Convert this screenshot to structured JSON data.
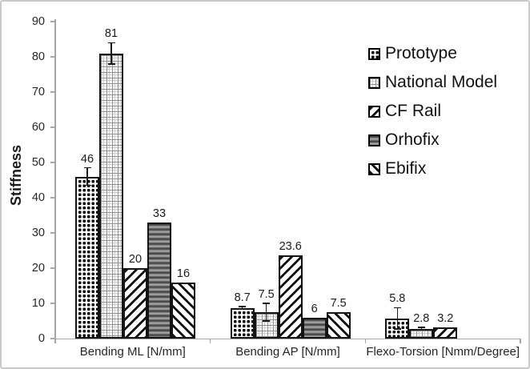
{
  "chart_data": {
    "type": "bar",
    "title": "",
    "xlabel": "",
    "ylabel": "Stiffness",
    "ylim": [
      0,
      90
    ],
    "ytick_step": 10,
    "yticks": [
      0,
      10,
      20,
      30,
      40,
      50,
      60,
      70,
      80,
      90
    ],
    "grid": false,
    "legend_position": "upper right",
    "categories": [
      "Bending ML [N/mm]",
      "Bending AP [N/mm]",
      "Flexo-Torsion [Nmm/Degree]"
    ],
    "series": [
      {
        "name": "Prototype",
        "pattern": "dotted",
        "values": [
          46,
          8.7,
          5.8
        ],
        "error_bars": [
          2.5,
          0.4,
          3
        ]
      },
      {
        "name": "National Model",
        "pattern": "grid",
        "values": [
          81,
          7.5,
          2.8
        ],
        "error_bars": [
          3,
          2.5,
          0.4
        ]
      },
      {
        "name": "CF Rail",
        "pattern": "diagonal-up",
        "values": [
          20,
          23.6,
          3.2
        ],
        "error_bars": [
          0,
          0,
          0
        ]
      },
      {
        "name": "Orhofix",
        "pattern": "gray-horizontal-stripes",
        "values": [
          33,
          6,
          null
        ],
        "error_bars": [
          0,
          0,
          0
        ]
      },
      {
        "name": "Ebifix",
        "pattern": "diagonal-down",
        "values": [
          16,
          7.5,
          null
        ],
        "error_bars": [
          0,
          0,
          0
        ]
      }
    ],
    "value_labels": [
      [
        "46",
        "8.7",
        "5.8"
      ],
      [
        "81",
        "7.5",
        "2.8"
      ],
      [
        "20",
        "23.6",
        "3.2"
      ],
      [
        "33",
        "6",
        ""
      ],
      [
        "16",
        "7.5",
        ""
      ]
    ],
    "colors": {
      "bar_outline": "#141414",
      "axis": "#a6a6a6",
      "text": "#1a1a1a",
      "frame": "#c9c9c9"
    }
  }
}
